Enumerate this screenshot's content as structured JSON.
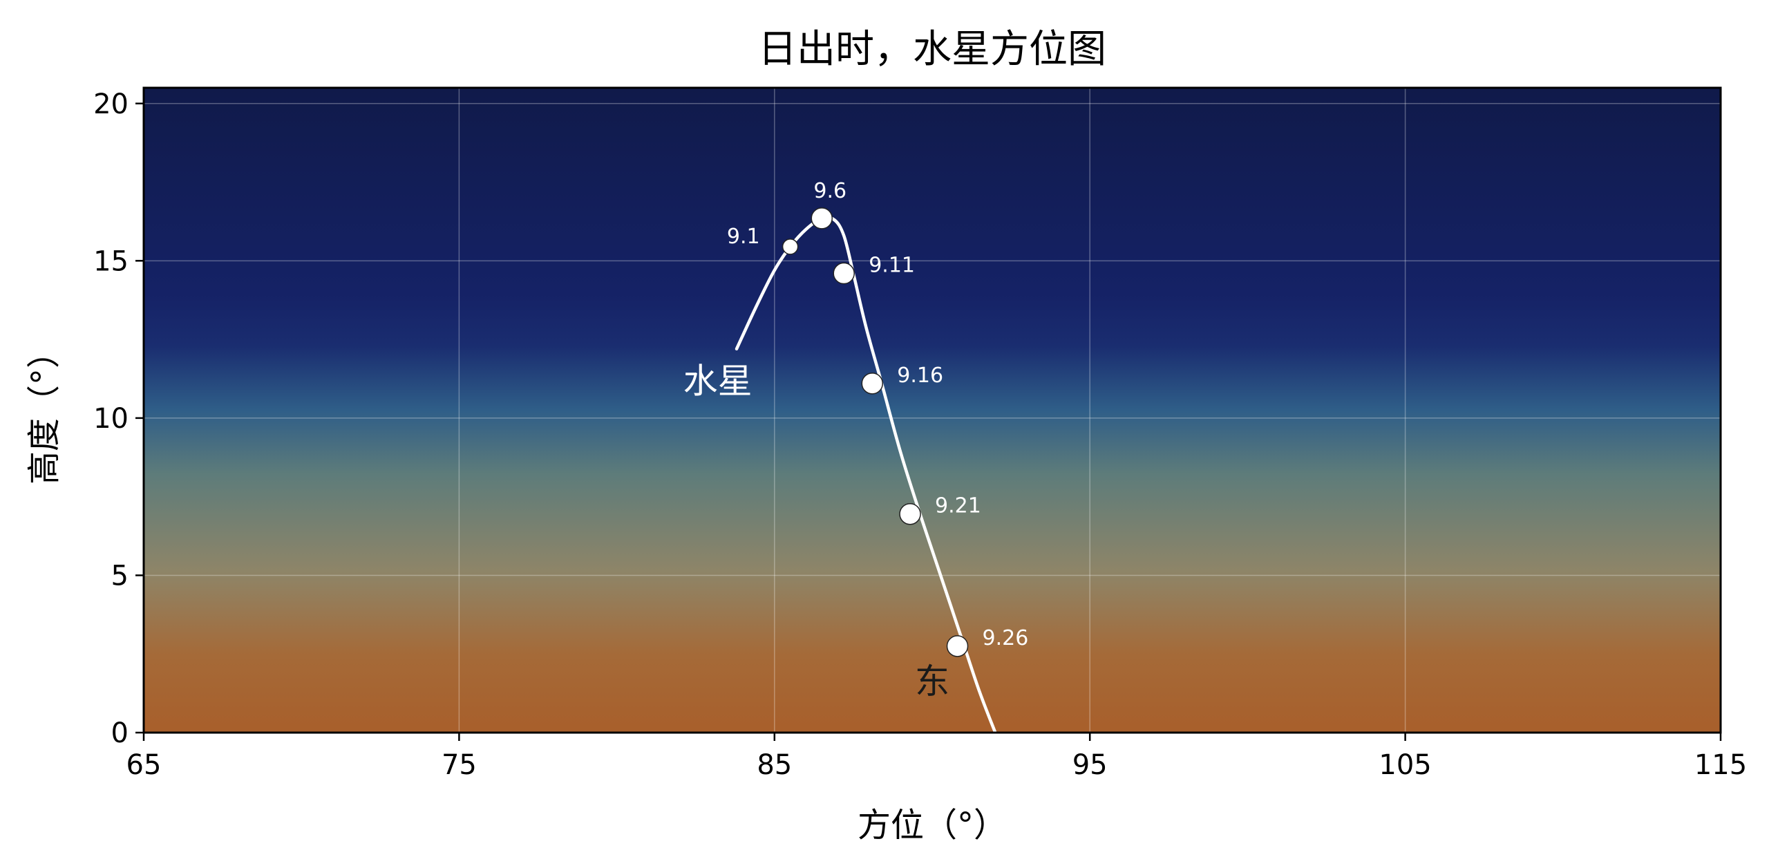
{
  "chart_data": {
    "type": "line",
    "title": "日出时，水星方位图",
    "xlabel": "方位（°）",
    "ylabel": "高度（°）",
    "xlim": [
      65,
      115
    ],
    "ylim": [
      0,
      20.5
    ],
    "xticks": [
      65,
      75,
      85,
      95,
      105,
      115
    ],
    "yticks": [
      0,
      5,
      10,
      15,
      20
    ],
    "grid": true,
    "background": "sky gradient from orange near the horizon to dark navy at top",
    "series": [
      {
        "name": "水星",
        "path": [
          {
            "x": 83.8,
            "y": 12.2
          },
          {
            "x": 84.4,
            "y": 13.5
          },
          {
            "x": 85.0,
            "y": 14.7
          },
          {
            "x": 85.5,
            "y": 15.45
          },
          {
            "x": 86.0,
            "y": 16.0
          },
          {
            "x": 86.5,
            "y": 16.35
          },
          {
            "x": 86.9,
            "y": 16.3
          },
          {
            "x": 87.2,
            "y": 15.8
          },
          {
            "x": 87.5,
            "y": 14.6
          },
          {
            "x": 87.9,
            "y": 12.9
          },
          {
            "x": 88.4,
            "y": 11.1
          },
          {
            "x": 89.0,
            "y": 8.9
          },
          {
            "x": 89.6,
            "y": 7.0
          },
          {
            "x": 90.2,
            "y": 5.2
          },
          {
            "x": 91.0,
            "y": 2.8
          },
          {
            "x": 91.5,
            "y": 1.3
          },
          {
            "x": 92.0,
            "y": 0.0
          }
        ],
        "markers": [
          {
            "label": "9.1",
            "x": 85.5,
            "y": 15.45
          },
          {
            "label": "9.6",
            "x": 86.5,
            "y": 16.35
          },
          {
            "label": "9.11",
            "x": 87.2,
            "y": 14.6
          },
          {
            "label": "9.16",
            "x": 88.1,
            "y": 11.1
          },
          {
            "label": "9.21",
            "x": 89.3,
            "y": 6.95
          },
          {
            "label": "9.26",
            "x": 90.8,
            "y": 2.75
          }
        ]
      }
    ],
    "annotations": [
      {
        "text": "水星",
        "x": 83.2,
        "y": 10.8,
        "color": "#ffffff"
      },
      {
        "text": "东",
        "x": 90.0,
        "y": 1.25,
        "color": "#1a1a1a"
      }
    ],
    "colors": {
      "line": "#ffffff",
      "marker_fill": "#ffffff",
      "marker_edge": "#222222",
      "grid": "#ffffff",
      "sky_top": "#101a4a",
      "sky_upper": "#152266",
      "sky_mid": "#2f5e88",
      "sky_teal": "#5e7c7a",
      "sky_tan": "#8e8568",
      "sky_horizon": "#a85f2b"
    }
  }
}
